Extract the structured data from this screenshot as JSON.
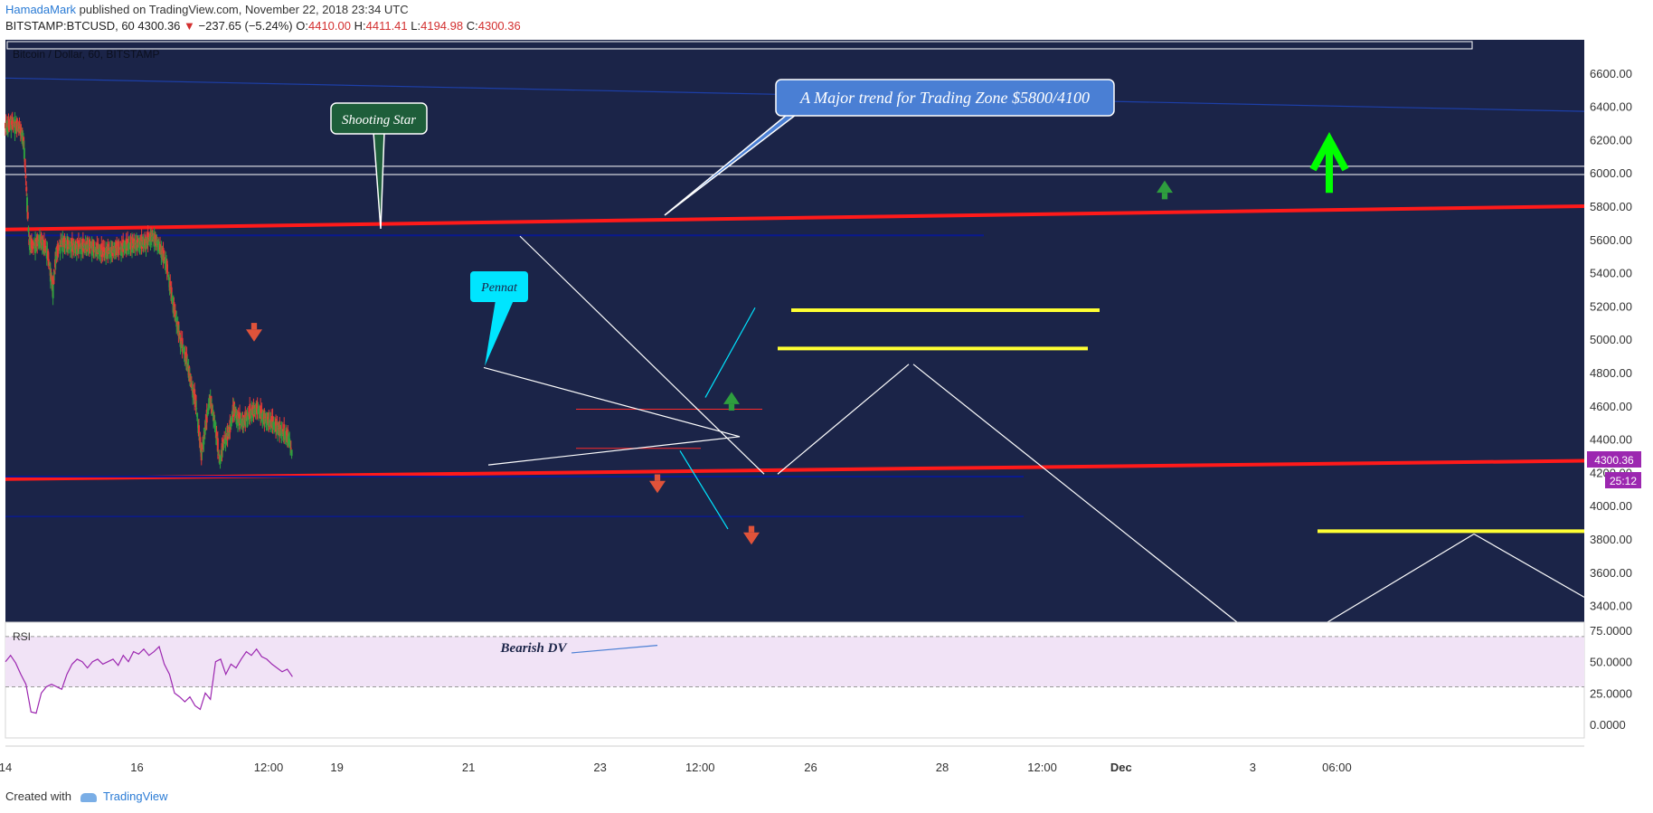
{
  "header": {
    "author": "HamadaMark",
    "published": "published on TradingView.com, November 22, 2018 23:34 UTC",
    "symbol": "BITSTAMP:BTCUSD, 60",
    "last": "4300.36",
    "change": "−237.65 (−5.24%)",
    "o_label": "O:",
    "o": "4410.00",
    "h_label": "H:",
    "h": "4411.41",
    "l_label": "L:",
    "l": "4194.98",
    "c_label": "C:",
    "c": "4300.36"
  },
  "footer": {
    "created_with": "Created with",
    "brand": "TradingView"
  },
  "colors": {
    "pane_bg": "#1b2448",
    "rsi_bg": "#ffffff",
    "rsi_band": "#f1e3f6",
    "rsi_line": "#9c27b0",
    "red_trend": "#ff1a1a",
    "yellow": "#ffff33",
    "white": "#ffffff",
    "cyan": "#00e5ff",
    "navy": "#0a1a6e",
    "up_candle": "#2e9e3e",
    "down_candle": "#e53935",
    "price_tag": "#9c27b0",
    "green_arrow": "#00ff00"
  },
  "chart_data": {
    "type": "candlestick",
    "title": "Bitcoin / Dollar, 60, BITSTAMP",
    "ylim": [
      3300,
      6800
    ],
    "y_ticks": [
      6600,
      6400,
      6200,
      6000,
      5800,
      5600,
      5400,
      5200,
      5000,
      4800,
      4600,
      4400,
      4200,
      4000,
      3800,
      3600,
      3400
    ],
    "y_tick_labels": [
      "6600.00",
      "6400.00",
      "6200.00",
      "6000.00",
      "5800.00",
      "5600.00",
      "5400.00",
      "5200.00",
      "5000.00",
      "4800.00",
      "4600.00",
      "4400.00",
      "4200.00",
      "4000.00",
      "3800.00",
      "3600.00",
      "3400.00"
    ],
    "x_ticks": [
      "14",
      "16",
      "12:00",
      "19",
      "21",
      "23",
      "12:00",
      "26",
      "28",
      "12:00",
      "Dec",
      "3",
      "06:00"
    ],
    "last_price_label": "4300.36",
    "countdown_label": "25:12",
    "price_path": [
      [
        0,
        6280
      ],
      [
        0.5,
        6300
      ],
      [
        1,
        6270
      ],
      [
        1.3,
        6200
      ],
      [
        1.5,
        5900
      ],
      [
        1.7,
        5580
      ],
      [
        2,
        5560
      ],
      [
        2.5,
        5600
      ],
      [
        3,
        5520
      ],
      [
        3.4,
        5300
      ],
      [
        3.6,
        5500
      ],
      [
        4,
        5580
      ],
      [
        5,
        5550
      ],
      [
        6,
        5560
      ],
      [
        7,
        5520
      ],
      [
        8,
        5540
      ],
      [
        9,
        5570
      ],
      [
        10,
        5580
      ],
      [
        10.5,
        5620
      ],
      [
        11,
        5560
      ],
      [
        11.5,
        5450
      ],
      [
        12,
        5200
      ],
      [
        12.5,
        5000
      ],
      [
        13,
        4850
      ],
      [
        13.3,
        4720
      ],
      [
        13.6,
        4620
      ],
      [
        14,
        4300
      ],
      [
        14.3,
        4480
      ],
      [
        14.6,
        4650
      ],
      [
        15,
        4480
      ],
      [
        15.3,
        4260
      ],
      [
        15.6,
        4380
      ],
      [
        16,
        4450
      ],
      [
        16.3,
        4580
      ],
      [
        16.6,
        4520
      ],
      [
        17,
        4500
      ],
      [
        17.5,
        4560
      ],
      [
        18,
        4580
      ],
      [
        18.5,
        4520
      ],
      [
        19,
        4500
      ],
      [
        19.5,
        4460
      ],
      [
        20,
        4430
      ],
      [
        20.3,
        4390
      ],
      [
        20.5,
        4300
      ]
    ],
    "rsi": {
      "label": "RSI",
      "ylim": [
        -10,
        80
      ],
      "y_ticks": [
        75,
        50,
        25,
        0
      ],
      "y_tick_labels": [
        "75.0000",
        "50.0000",
        "25.0000",
        "0.0000"
      ],
      "band": [
        30,
        70
      ],
      "values": [
        50,
        55,
        49,
        40,
        32,
        10,
        9,
        25,
        30,
        32,
        30,
        28,
        40,
        48,
        52,
        50,
        45,
        50,
        52,
        48,
        50,
        52,
        47,
        55,
        50,
        58,
        56,
        60,
        55,
        58,
        62,
        48,
        40,
        25,
        22,
        18,
        22,
        15,
        12,
        25,
        20,
        50,
        52,
        40,
        48,
        45,
        52,
        58,
        55,
        60,
        54,
        52,
        48,
        45,
        42,
        44,
        38
      ]
    },
    "annotations": {
      "callout_major": "A Major trend for Trading Zone $5800/4100",
      "callout_star": "Shooting Star",
      "callout_pennant": "Pennat",
      "rsi_note": "Bearish DV"
    }
  }
}
